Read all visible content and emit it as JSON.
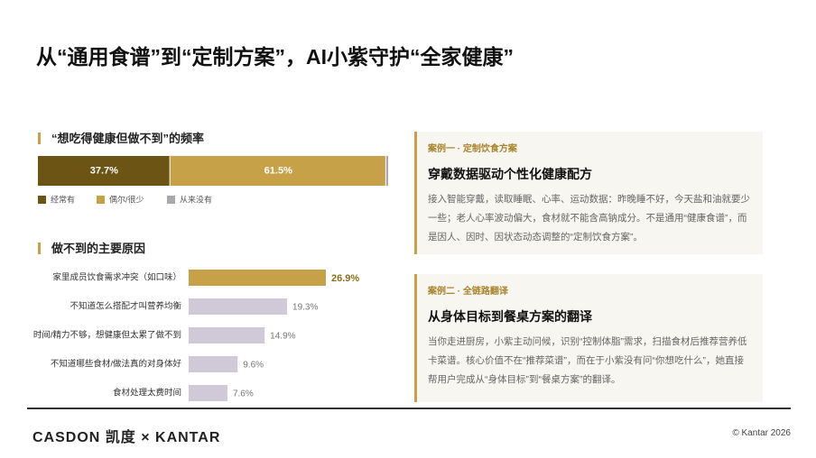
{
  "header": {
    "title": "从“通用食谱”到“定制方案”，AI小紫守护“全家健康”"
  },
  "chart_data": [
    {
      "type": "stacked-bar",
      "title": "“想吃得健康但做不到”的频率",
      "series": [
        {
          "name": "经常有",
          "color": "#6b5414",
          "values": [
            37.7
          ],
          "value_labels": [
            "37.7%"
          ]
        },
        {
          "name": "偶尔/很少",
          "color": "#c6a148",
          "values": [
            61.5
          ],
          "value_labels": [
            "61.5%"
          ]
        },
        {
          "name": "从来没有",
          "color": "#a9a6ad",
          "values": [
            0.8
          ]
        }
      ]
    },
    {
      "type": "hbar",
      "title": "做不到的主要原因",
      "categories": [
        "家里成员饮食需求冲突（如口味）",
        "不知道怎么搭配才叫营养均衡",
        "时间/精力不够，想健康但太累了做不到",
        "不知道哪些食材/做法真的对身体好",
        "食材处理太费时间"
      ],
      "values": [
        26.9,
        19.3,
        14.9,
        9.6,
        7.6
      ],
      "value_labels": [
        "26.9%",
        "19.3%",
        "14.9%",
        "9.6%",
        "7.6%"
      ],
      "colors": [
        "#c6a148",
        "#d0cad8",
        "#d0cad8",
        "#d0cad8",
        "#d0cad8"
      ]
    }
  ],
  "cases": [
    {
      "tag": "案例一 · 定制饮食方案",
      "title": "穿戴数据驱动个性化健康配方",
      "body": "接入智能穿戴，读取睡眠、心率、运动数据：昨晚睡不好，今天盐和油就要少一些；老人心率波动偏大，食材就不能含高钠成分。不是通用“健康食谱”，而是因人、因时、因状态动态调整的“定制饮食方案”。"
    },
    {
      "tag": "案例二 · 全链路翻译",
      "title": "从身体目标到餐桌方案的翻译",
      "body": "当你走进厨房，小紫主动问候，识别“控制体脂”需求，扫描食材后推荐营养低卡菜谱。核心价值不在“推荐菜谱”，而在于小紫没有问“你想吃什么”，她直接帮用户完成从“身体目标”到“餐桌方案”的翻译。"
    }
  ],
  "footer": {
    "logo": "CASDON 凯度 × KANTAR",
    "copyright": "© Kantar 2026"
  }
}
